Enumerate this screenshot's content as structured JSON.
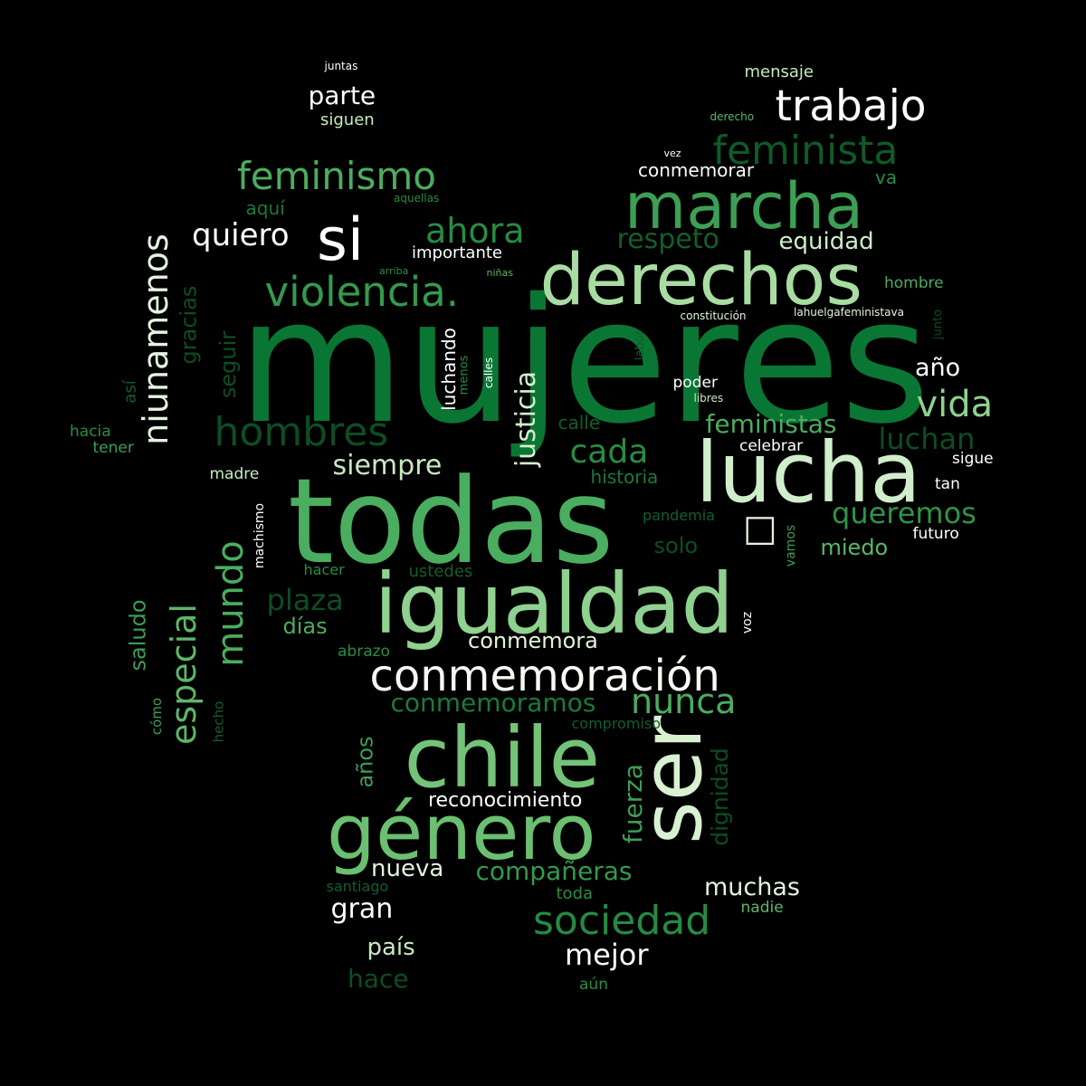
{
  "background": "#000000",
  "words": [
    {
      "text": "mujeres",
      "color": "#0a7634",
      "rot": 0
    },
    {
      "text": "todas",
      "color": "#4aad5f",
      "rot": 0
    },
    {
      "text": "lucha",
      "color": "#d0eecc",
      "rot": 0
    },
    {
      "text": "igualdad",
      "color": "#8fd18f",
      "rot": 0
    },
    {
      "text": "chile",
      "color": "#73c378",
      "rot": 0
    },
    {
      "text": "ser",
      "color": "#d8f1d2",
      "rot": -90
    },
    {
      "text": "género",
      "color": "#6bbf70",
      "rot": 0
    },
    {
      "text": "derechos",
      "color": "#a9dca2",
      "rot": 0
    },
    {
      "text": "marcha",
      "color": "#3d9e55",
      "rot": 0
    },
    {
      "text": "si",
      "color": "#ffffff",
      "rot": 0
    },
    {
      "text": "trabajo",
      "color": "#ffffff",
      "rot": 0
    },
    {
      "text": "feminista",
      "color": "#0f5a2a",
      "rot": 0
    },
    {
      "text": "feminismo",
      "color": "#4aad5f",
      "rot": 0
    },
    {
      "text": "violencia.",
      "color": "#339a4f",
      "rot": 0
    },
    {
      "text": "conmemoración",
      "color": "#f5fbf2",
      "rot": 0
    },
    {
      "text": "niunamenos",
      "color": "#e3f4de",
      "rot": -90
    },
    {
      "text": "hombres",
      "color": "#0d4d24",
      "rot": 0
    },
    {
      "text": "mundo",
      "color": "#4aad5f",
      "rot": -90
    },
    {
      "text": "especial",
      "color": "#5cb767",
      "rot": -90
    },
    {
      "text": "ahora",
      "color": "#288c45",
      "rot": 0
    },
    {
      "text": "vida",
      "color": "#8fd18f",
      "rot": 0
    },
    {
      "text": "sociedad",
      "color": "#258a43",
      "rot": 0
    },
    {
      "text": "nunca",
      "color": "#4aad5f",
      "rot": 0
    },
    {
      "text": "quiero",
      "color": "#ffffff",
      "rot": 0
    },
    {
      "text": "plaza",
      "color": "#0d4d24",
      "rot": 0
    },
    {
      "text": "cada",
      "color": "#298d45",
      "rot": 0
    },
    {
      "text": "siempre",
      "color": "#c7eac0",
      "rot": 0
    },
    {
      "text": "queremos",
      "color": "#2f9448",
      "rot": 0
    },
    {
      "text": "luchan",
      "color": "#0d4d24",
      "rot": 0
    },
    {
      "text": "justicia",
      "color": "#d5efcf",
      "rot": -90
    },
    {
      "text": "respeto",
      "color": "#125e2c",
      "rot": 0
    },
    {
      "text": "equidad",
      "color": "#d0eecc",
      "rot": 0
    },
    {
      "text": "feministas",
      "color": "#4aad5f",
      "rot": 0
    },
    {
      "text": "compañeras",
      "color": "#339a4f",
      "rot": 0
    },
    {
      "text": "mejor",
      "color": "#ffffff",
      "rot": 0
    },
    {
      "text": "conmemoramos",
      "color": "#1a7a3a",
      "rot": 0
    },
    {
      "text": "fuerza",
      "color": "#3d9e55",
      "rot": -90
    },
    {
      "text": "dignidad",
      "color": "#0d4d24",
      "rot": -90
    },
    {
      "text": "muchas",
      "color": "#e3f4de",
      "rot": 0
    },
    {
      "text": "gran",
      "color": "#ffffff",
      "rot": 0
    },
    {
      "text": "nueva",
      "color": "#e3f4de",
      "rot": 0
    },
    {
      "text": "reconocimiento",
      "color": "#ffffff",
      "rot": 0
    },
    {
      "text": "conmemora",
      "color": "#e3f4de",
      "rot": 0
    },
    {
      "text": "país",
      "color": "#c7eac0",
      "rot": 0
    },
    {
      "text": "hace",
      "color": "#0d4d24",
      "rot": 0
    },
    {
      "text": "parte",
      "color": "#ffffff",
      "rot": 0
    },
    {
      "text": "año",
      "color": "#ffffff",
      "rot": 0
    },
    {
      "text": "miedo",
      "color": "#5cb767",
      "rot": 0
    },
    {
      "text": "solo",
      "color": "#0d4d24",
      "rot": 0
    },
    {
      "text": "años",
      "color": "#3d9e55",
      "rot": -90
    },
    {
      "text": "gracias",
      "color": "#0d4d24",
      "rot": -90
    },
    {
      "text": "seguir",
      "color": "#0d4d24",
      "rot": -90
    },
    {
      "text": "saludo",
      "color": "#3d9e55",
      "rot": -90
    },
    {
      "text": "días",
      "color": "#4aad5f",
      "rot": 0
    },
    {
      "text": "luchando",
      "color": "#ffffff",
      "rot": -90
    },
    {
      "text": "conmemorar",
      "color": "#ffffff",
      "rot": 0
    },
    {
      "text": "importante",
      "color": "#ffffff",
      "rot": 0
    },
    {
      "text": "mensaje",
      "color": "#c7eac0",
      "rot": 0
    },
    {
      "text": "va",
      "color": "#298d45",
      "rot": 0
    },
    {
      "text": "historia",
      "color": "#1a7a3a",
      "rot": 0
    },
    {
      "text": "calle",
      "color": "#125e2c",
      "rot": 0
    },
    {
      "text": "siguen",
      "color": "#c7eac0",
      "rot": 0
    },
    {
      "text": "aquí",
      "color": "#1a7a3a",
      "rot": 0
    },
    {
      "text": "hombre",
      "color": "#4aad5f",
      "rot": 0
    },
    {
      "text": "poder",
      "color": "#ffffff",
      "rot": 0
    },
    {
      "text": "celebrar",
      "color": "#ffffff",
      "rot": 0
    },
    {
      "text": "sigue",
      "color": "#ffffff",
      "rot": 0
    },
    {
      "text": "tan",
      "color": "#ffffff",
      "rot": 0
    },
    {
      "text": "futuro",
      "color": "#ffffff",
      "rot": 0
    },
    {
      "text": "hacia",
      "color": "#298d45",
      "rot": 0
    },
    {
      "text": "tener",
      "color": "#3d9e55",
      "rot": 0
    },
    {
      "text": "así",
      "color": "#125e2c",
      "rot": -90
    },
    {
      "text": "madre",
      "color": "#c7eac0",
      "rot": 0
    },
    {
      "text": "machismo",
      "color": "#ffffff",
      "rot": -90
    },
    {
      "text": "hacer",
      "color": "#298d45",
      "rot": 0
    },
    {
      "text": "ustedes",
      "color": "#125e2c",
      "rot": 0
    },
    {
      "text": "abrazo",
      "color": "#298d45",
      "rot": 0
    },
    {
      "text": "pandemia",
      "color": "#125e2c",
      "rot": 0
    },
    {
      "text": "compromiso",
      "color": "#125e2c",
      "rot": 0
    },
    {
      "text": "vamos",
      "color": "#3d9e55",
      "rot": -90
    },
    {
      "text": "voz",
      "color": "#ffffff",
      "rot": -90
    },
    {
      "text": "labor",
      "color": "#125e2c",
      "rot": -90
    },
    {
      "text": "junto",
      "color": "#0d4d24",
      "rot": -90
    },
    {
      "text": "menos",
      "color": "#298d45",
      "rot": -90
    },
    {
      "text": "calles",
      "color": "#ffffff",
      "rot": -90
    },
    {
      "text": "cómo",
      "color": "#3d9e55",
      "rot": -90
    },
    {
      "text": "hecho",
      "color": "#125e2c",
      "rot": -90
    },
    {
      "text": "santiago",
      "color": "#125e2c",
      "rot": 0
    },
    {
      "text": "toda",
      "color": "#298d45",
      "rot": 0
    },
    {
      "text": "nadie",
      "color": "#5cb767",
      "rot": 0
    },
    {
      "text": "aún",
      "color": "#298d45",
      "rot": 0
    },
    {
      "text": "juntas",
      "color": "#ffffff",
      "rot": 0
    },
    {
      "text": "derecho",
      "color": "#5cb767",
      "rot": 0
    },
    {
      "text": "vez",
      "color": "#ffffff",
      "rot": 0
    },
    {
      "text": "aquellas",
      "color": "#298d45",
      "rot": 0
    },
    {
      "text": "arriba",
      "color": "#298d45",
      "rot": 0
    },
    {
      "text": "niñas",
      "color": "#5cb767",
      "rot": 0
    },
    {
      "text": "constitución",
      "color": "#e3f4de",
      "rot": 0
    },
    {
      "text": "lahuelgafeministava",
      "color": "#e3f4de",
      "rot": 0
    },
    {
      "text": "libres",
      "color": "#c7eac0",
      "rot": 0
    },
    {
      "text": "□",
      "color": "#e3f4de",
      "rot": 0
    }
  ]
}
